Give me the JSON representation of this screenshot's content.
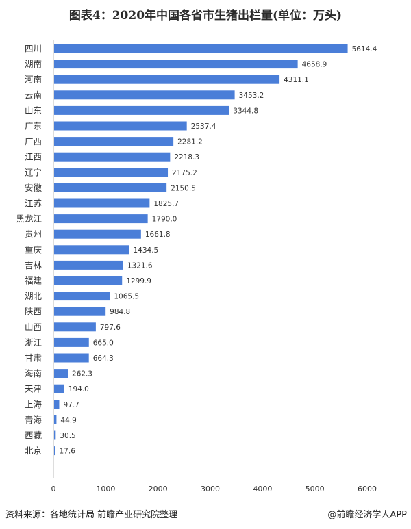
{
  "chart_data": {
    "type": "bar",
    "orientation": "horizontal",
    "title": "图表4：2020年中国各省市生猪出栏量(单位：万头)",
    "categories": [
      "四川",
      "湖南",
      "河南",
      "云南",
      "山东",
      "广东",
      "广西",
      "江西",
      "辽宁",
      "安徽",
      "江苏",
      "黑龙江",
      "贵州",
      "重庆",
      "吉林",
      "福建",
      "湖北",
      "陕西",
      "山西",
      "浙江",
      "甘肃",
      "海南",
      "天津",
      "上海",
      "青海",
      "西藏",
      "北京"
    ],
    "values": [
      5614.4,
      4658.9,
      4311.1,
      3453.2,
      3344.8,
      2537.4,
      2281.2,
      2218.3,
      2175.2,
      2150.5,
      1825.7,
      1790.0,
      1661.8,
      1434.5,
      1321.6,
      1299.9,
      1065.5,
      984.8,
      797.6,
      665.0,
      664.3,
      262.3,
      194.0,
      97.7,
      44.9,
      30.5,
      17.6
    ],
    "value_labels": [
      "5614.4",
      "4658.9",
      "4311.1",
      "3453.2",
      "3344.8",
      "2537.4",
      "2281.2",
      "2218.3",
      "2175.2",
      "2150.5",
      "1825.7",
      "1790.0",
      "1661.8",
      "1434.5",
      "1321.6",
      "1299.9",
      "1065.5",
      "984.8",
      "797.6",
      "665.0",
      "664.3",
      "262.3",
      "194.0",
      "97.7",
      "44.9",
      "30.5",
      "17.6"
    ],
    "xlim": [
      0,
      6000
    ],
    "xticks": [
      0,
      1000,
      2000,
      3000,
      4000,
      5000,
      6000
    ],
    "grid": false,
    "legend": "none",
    "colors": {
      "bar": "#4a7ed8",
      "axis": "#bbbbbb",
      "text": "#333333"
    }
  },
  "footer": {
    "source": "资料来源：各地统计局 前瞻产业研究院整理",
    "credit": "@前瞻经济学人APP"
  }
}
